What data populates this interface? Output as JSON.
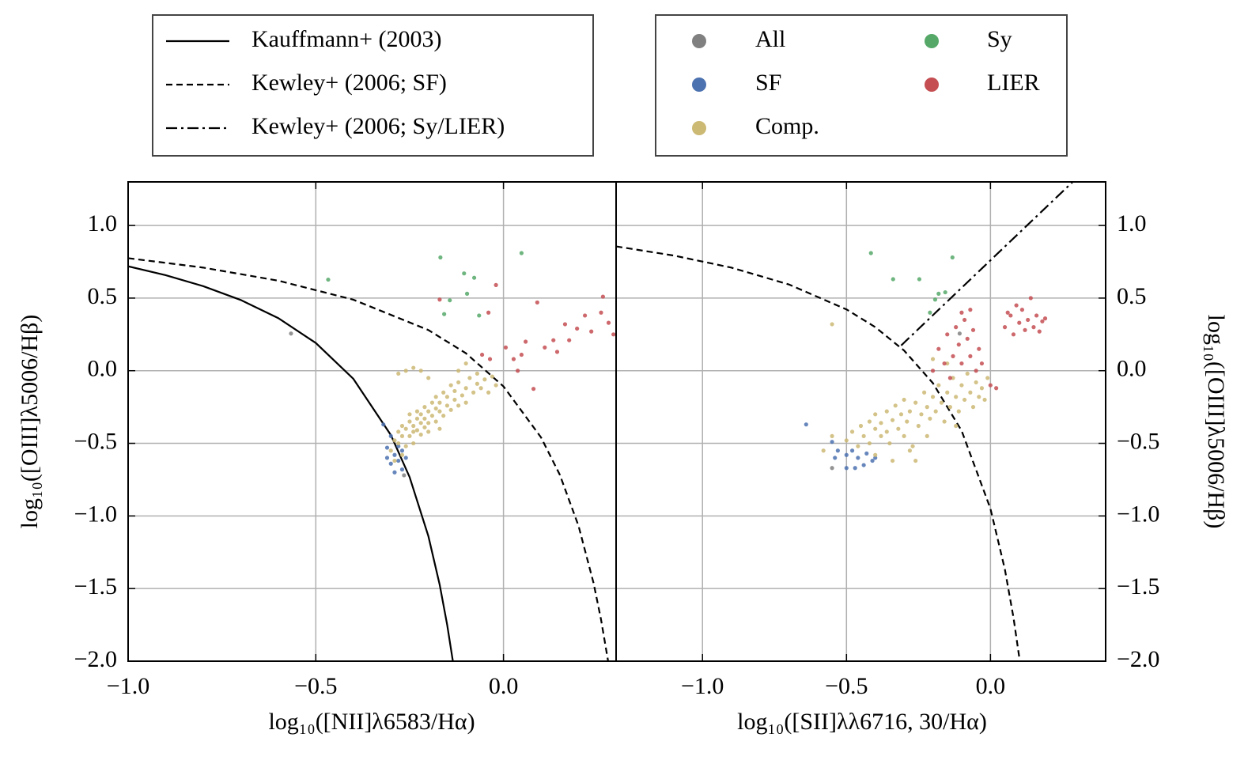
{
  "chart_data": [
    {
      "type": "scatter",
      "xlabel": "log₁₀([NII]λ6583/Hα)",
      "ylabel": "log₁₀([OIII]λ5006/Hβ)",
      "xlim": [
        -1.0,
        0.3
      ],
      "ylim": [
        -2.0,
        1.3
      ],
      "xticks": [
        {
          "value": -1.0,
          "label": "−1.0"
        },
        {
          "value": -0.5,
          "label": "−0.5"
        },
        {
          "value": 0.0,
          "label": "0.0"
        }
      ],
      "yticks": [
        {
          "value": -2.0,
          "label": "−2.0"
        },
        {
          "value": -1.5,
          "label": "−1.5"
        },
        {
          "value": -1.0,
          "label": "−1.0"
        },
        {
          "value": -0.5,
          "label": "−0.5"
        },
        {
          "value": 0.0,
          "label": "0.0"
        },
        0.5,
        {
          "value": 1.0,
          "label": "1.0"
        }
      ],
      "grid": true,
      "series": [
        {
          "name": "Kauffmann+ (2003)",
          "color": "#000000",
          "linestyle": "solid",
          "x": [
            -1.0,
            -0.9,
            -0.8,
            -0.7,
            -0.6,
            -0.5,
            -0.4,
            -0.3,
            -0.25,
            -0.2,
            -0.17,
            -0.15,
            -0.135
          ],
          "values": [
            0.719,
            0.658,
            0.582,
            0.487,
            0.362,
            0.191,
            -0.056,
            -0.443,
            -0.733,
            -1.14,
            -1.473,
            -1.75,
            -1.997
          ]
        },
        {
          "name": "Kewley+ (2006; SF)",
          "color": "#000000",
          "linestyle": "dashed",
          "x": [
            -1.0,
            -0.8,
            -0.6,
            -0.4,
            -0.2,
            -0.1,
            0.0,
            0.1,
            0.15,
            0.2,
            0.24,
            0.26,
            0.279
          ],
          "values": [
            0.775,
            0.71,
            0.62,
            0.489,
            0.28,
            0.12,
            -0.108,
            -0.459,
            -0.716,
            -1.069,
            -1.462,
            -1.715,
            -2.004
          ]
        },
        {
          "name": "All",
          "color": "#808080",
          "x": [
            -0.566,
            -0.265
          ],
          "values": [
            0.256,
            -0.72
          ]
        },
        {
          "name": "SF",
          "color": "#4c72b0",
          "x": [
            -0.32,
            -0.3,
            -0.31,
            -0.29,
            -0.28,
            -0.3,
            -0.27,
            -0.29,
            -0.26,
            -0.28,
            -0.31,
            -0.27
          ],
          "values": [
            -0.37,
            -0.45,
            -0.53,
            -0.58,
            -0.62,
            -0.64,
            -0.68,
            -0.7,
            -0.6,
            -0.52,
            -0.6,
            -0.55
          ]
        },
        {
          "name": "Comp.",
          "color": "#ccb974",
          "x": [
            -0.3,
            -0.29,
            -0.28,
            -0.28,
            -0.27,
            -0.27,
            -0.26,
            -0.26,
            -0.25,
            -0.25,
            -0.25,
            -0.24,
            -0.24,
            -0.24,
            -0.23,
            -0.23,
            -0.23,
            -0.22,
            -0.22,
            -0.22,
            -0.21,
            -0.21,
            -0.21,
            -0.2,
            -0.2,
            -0.2,
            -0.19,
            -0.19,
            -0.18,
            -0.18,
            -0.18,
            -0.17,
            -0.17,
            -0.16,
            -0.16,
            -0.15,
            -0.15,
            -0.14,
            -0.14,
            -0.13,
            -0.13,
            -0.12,
            -0.12,
            -0.11,
            -0.1,
            -0.1,
            -0.09,
            -0.08,
            -0.07,
            -0.07,
            -0.06,
            -0.05,
            -0.04,
            -0.03,
            -0.02,
            -0.28,
            -0.24,
            -0.22,
            -0.2,
            -0.26,
            -0.17,
            -0.29,
            -0.27,
            -0.1,
            -0.12
          ],
          "values": [
            -0.55,
            -0.48,
            -0.42,
            -0.5,
            -0.38,
            -0.45,
            -0.52,
            -0.4,
            -0.35,
            -0.45,
            -0.3,
            -0.42,
            -0.38,
            -0.5,
            -0.33,
            -0.41,
            -0.28,
            -0.36,
            -0.44,
            -0.3,
            -0.39,
            -0.25,
            -0.33,
            -0.28,
            -0.36,
            -0.42,
            -0.22,
            -0.31,
            -0.26,
            -0.35,
            -0.18,
            -0.28,
            -0.22,
            -0.31,
            -0.15,
            -0.24,
            -0.18,
            -0.27,
            -0.1,
            -0.2,
            -0.14,
            -0.24,
            -0.08,
            -0.17,
            -0.12,
            -0.22,
            -0.05,
            -0.15,
            -0.09,
            -0.02,
            -0.12,
            -0.06,
            -0.15,
            -0.04,
            -0.1,
            -0.02,
            0.02,
            0.0,
            -0.05,
            0.0,
            -0.4,
            -0.62,
            -0.58,
            0.05,
            0.0
          ]
        },
        {
          "name": "Sy",
          "color": "#55a868",
          "x": [
            -0.467,
            -0.168,
            -0.105,
            -0.078,
            -0.143,
            -0.158,
            -0.065,
            -0.097,
            0.048
          ],
          "values": [
            0.627,
            0.78,
            0.67,
            0.64,
            0.485,
            0.39,
            0.38,
            0.53,
            0.81
          ]
        },
        {
          "name": "LIER",
          "color": "#c44e52",
          "x": [
            -0.17,
            -0.02,
            -0.04,
            0.09,
            0.164,
            0.265,
            0.28,
            0.234,
            0.196,
            0.133,
            0.11,
            0.059,
            0.027,
            0.006,
            -0.036,
            -0.057,
            0.08,
            0.038,
            0.175,
            0.217,
            0.293,
            0.143,
            0.26,
            0.048
          ],
          "values": [
            0.49,
            0.59,
            0.4,
            0.47,
            0.32,
            0.51,
            0.33,
            0.27,
            0.29,
            0.21,
            0.16,
            0.2,
            0.08,
            0.16,
            0.08,
            0.11,
            -0.125,
            0.0,
            0.21,
            0.38,
            0.25,
            0.13,
            0.4,
            0.11
          ]
        }
      ]
    },
    {
      "type": "scatter",
      "xlabel": "log₁₀([SII]λλ6716, 30/Hα)",
      "ylabel": "log₁₀([OIII]λ5006/Hβ)",
      "xlim": [
        -1.3,
        0.4
      ],
      "ylim": [
        -2.0,
        1.3
      ],
      "xticks": [
        {
          "value": -1.0,
          "label": "−1.0"
        },
        {
          "value": -0.5,
          "label": "−0.5"
        },
        {
          "value": 0.0,
          "label": "0.0"
        }
      ],
      "yticks": [
        {
          "value": -2.0,
          "label": "−2.0"
        },
        {
          "value": -1.5,
          "label": "−1.5"
        },
        {
          "value": -1.0,
          "label": "−1.0"
        },
        {
          "value": -0.5,
          "label": "−0.5"
        },
        {
          "value": 0.0,
          "label": "0.0"
        },
        0.5,
        {
          "value": 1.0,
          "label": "1.0"
        }
      ],
      "grid": true,
      "series": [
        {
          "name": "Kewley+ (2006; SF)",
          "color": "#000000",
          "linestyle": "dashed",
          "x": [
            -1.3,
            -1.1,
            -0.9,
            -0.7,
            -0.5,
            -0.4,
            -0.3,
            -0.2,
            -0.1,
            0.0,
            0.05,
            0.08,
            0.1
          ],
          "values": [
            0.856,
            0.793,
            0.71,
            0.594,
            0.422,
            0.3,
            0.139,
            -0.085,
            -0.414,
            -0.95,
            -1.367,
            -1.7,
            -1.973
          ]
        },
        {
          "name": "Kewley+ (2006; Sy/LIER)",
          "color": "#000000",
          "linestyle": "dashdot",
          "x": [
            -0.31,
            0.285
          ],
          "values": [
            0.174,
            1.299
          ]
        },
        {
          "name": "All",
          "color": "#808080",
          "x": [
            -0.107,
            -0.55
          ],
          "values": [
            0.256,
            -0.67
          ]
        },
        {
          "name": "SF",
          "color": "#4c72b0",
          "x": [
            -0.64,
            -0.55,
            -0.53,
            -0.5,
            -0.48,
            -0.46,
            -0.44,
            -0.41,
            -0.5,
            -0.47,
            -0.43,
            -0.4,
            -0.54
          ],
          "values": [
            -0.37,
            -0.49,
            -0.55,
            -0.58,
            -0.55,
            -0.6,
            -0.65,
            -0.62,
            -0.67,
            -0.67,
            -0.57,
            -0.6,
            -0.6
          ]
        },
        {
          "name": "Comp.",
          "color": "#ccb974",
          "x": [
            -0.55,
            -0.5,
            -0.48,
            -0.46,
            -0.45,
            -0.44,
            -0.42,
            -0.42,
            -0.4,
            -0.4,
            -0.38,
            -0.38,
            -0.36,
            -0.36,
            -0.35,
            -0.34,
            -0.33,
            -0.32,
            -0.31,
            -0.3,
            -0.3,
            -0.29,
            -0.28,
            -0.27,
            -0.26,
            -0.25,
            -0.24,
            -0.23,
            -0.22,
            -0.22,
            -0.21,
            -0.2,
            -0.19,
            -0.18,
            -0.17,
            -0.16,
            -0.15,
            -0.14,
            -0.13,
            -0.12,
            -0.11,
            -0.1,
            -0.09,
            -0.08,
            -0.07,
            -0.06,
            -0.05,
            -0.04,
            -0.03,
            -0.02,
            -0.01,
            -0.34,
            -0.28,
            -0.58,
            -0.55,
            -0.2,
            -0.26,
            -0.4,
            -0.15,
            -0.12
          ],
          "values": [
            -0.45,
            -0.48,
            -0.42,
            -0.52,
            -0.38,
            -0.45,
            -0.35,
            -0.5,
            -0.4,
            -0.3,
            -0.45,
            -0.36,
            -0.28,
            -0.42,
            -0.5,
            -0.34,
            -0.24,
            -0.4,
            -0.3,
            -0.45,
            -0.2,
            -0.35,
            -0.28,
            -0.52,
            -0.22,
            -0.38,
            -0.3,
            -0.15,
            -0.25,
            -0.45,
            -0.33,
            -0.18,
            -0.28,
            -0.1,
            -0.22,
            -0.35,
            -0.15,
            -0.25,
            -0.05,
            -0.18,
            -0.28,
            -0.1,
            -0.2,
            -0.02,
            -0.15,
            -0.25,
            -0.08,
            -0.18,
            -0.12,
            -0.2,
            -0.05,
            -0.62,
            -0.55,
            -0.55,
            0.32,
            0.08,
            -0.62,
            -0.58,
            0.05,
            -0.38
          ]
        },
        {
          "name": "Sy",
          "color": "#55a868",
          "x": [
            -0.415,
            -0.338,
            -0.247,
            -0.132,
            -0.192,
            -0.21,
            -0.18,
            -0.157
          ],
          "values": [
            0.81,
            0.63,
            0.63,
            0.78,
            0.49,
            0.4,
            0.53,
            0.54
          ]
        },
        {
          "name": "LIER",
          "color": "#c44e52",
          "x": [
            0.05,
            0.07,
            0.08,
            0.1,
            0.11,
            0.12,
            0.13,
            0.14,
            0.15,
            0.16,
            0.17,
            0.18,
            0.19,
            0.09,
            0.06,
            -0.2,
            -0.18,
            -0.16,
            -0.15,
            -0.14,
            -0.13,
            -0.12,
            -0.11,
            -0.1,
            -0.09,
            -0.08,
            -0.07,
            -0.06,
            -0.05,
            -0.04,
            -0.03,
            0.0,
            0.02,
            -0.07,
            -0.1
          ],
          "values": [
            0.3,
            0.38,
            0.25,
            0.33,
            0.42,
            0.28,
            0.35,
            0.5,
            0.3,
            0.38,
            0.27,
            0.34,
            0.36,
            0.45,
            0.4,
            0.0,
            0.15,
            0.05,
            0.25,
            -0.05,
            0.1,
            0.3,
            0.18,
            0.05,
            0.35,
            0.22,
            0.1,
            0.28,
            0.0,
            0.15,
            0.05,
            -0.1,
            -0.12,
            0.42,
            0.4
          ]
        }
      ]
    }
  ]
}
